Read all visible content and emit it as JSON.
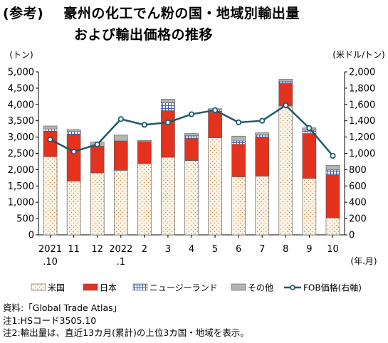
{
  "title": {
    "prefix": "(参考)",
    "line1": "豪州の化工でん粉の国・地域別輸出量",
    "line2": "および輸出価格の推移"
  },
  "chart_data": {
    "type": "bar",
    "stacked": true,
    "left_axis_unit": "(トン)",
    "right_axis_unit": "(米ドル/トン)",
    "x_unit": "(年.月)",
    "ylim": [
      0,
      5000
    ],
    "ylim_right": [
      0,
      2000
    ],
    "yticks": [
      "0",
      "500",
      "1,000",
      "1,500",
      "2,000",
      "2,500",
      "3,000",
      "3,500",
      "4,000",
      "4,500",
      "5,000"
    ],
    "yticks_right": [
      "0",
      "200",
      "400",
      "600",
      "800",
      "1,000",
      "1,200",
      "1,400",
      "1,600",
      "1,800",
      "2,000"
    ],
    "categories": [
      {
        "line1": "2021",
        "line2": ".10"
      },
      {
        "line1": "11",
        "line2": ""
      },
      {
        "line1": "12",
        "line2": ""
      },
      {
        "line1": "2022",
        "line2": ".1"
      },
      {
        "line1": "2",
        "line2": ""
      },
      {
        "line1": "3",
        "line2": ""
      },
      {
        "line1": "4",
        "line2": ""
      },
      {
        "line1": "5",
        "line2": ""
      },
      {
        "line1": "6",
        "line2": ""
      },
      {
        "line1": "7",
        "line2": ""
      },
      {
        "line1": "8",
        "line2": ""
      },
      {
        "line1": "9",
        "line2": ""
      },
      {
        "line1": "10",
        "line2": ""
      }
    ],
    "series": [
      {
        "name": "米国",
        "color": "#f3e6d0",
        "values": [
          2400,
          1650,
          1900,
          1980,
          2180,
          2380,
          2280,
          2980,
          1780,
          1800,
          3950,
          1730,
          520
        ]
      },
      {
        "name": "日本",
        "color": "#e4321f",
        "values": [
          780,
          1420,
          820,
          900,
          680,
          1430,
          680,
          780,
          1000,
          1200,
          690,
          1380,
          1320
        ]
      },
      {
        "name": "ニュージーランド",
        "color": "#5a78c8",
        "values": [
          70,
          100,
          0,
          0,
          0,
          240,
          80,
          70,
          100,
          60,
          70,
          100,
          150
        ]
      },
      {
        "name": "その他",
        "color": "#b4b4b4",
        "values": [
          90,
          60,
          130,
          180,
          40,
          110,
          70,
          40,
          150,
          70,
          60,
          70,
          140
        ]
      }
    ],
    "line_series": {
      "name": "FOB価格(右軸)",
      "color": "#1f5a6e",
      "values": [
        1170,
        1020,
        1110,
        1420,
        1350,
        1380,
        1480,
        1530,
        1380,
        1400,
        1590,
        1310,
        970
      ]
    },
    "grid": false,
    "legend_position": "bottom"
  },
  "notes": [
    "資料:「Global Trade Atlas」",
    "注1:HSコード3505.10",
    "注2:輸出量は、直近13カ月(累計)の上位3カ国・地域を表示。"
  ]
}
